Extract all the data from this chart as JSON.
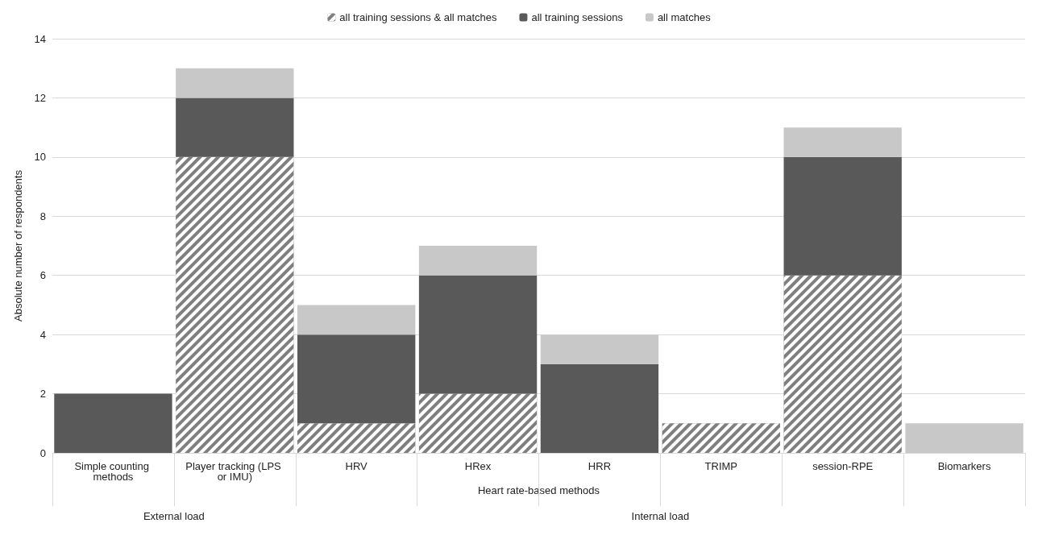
{
  "chart_data": {
    "type": "bar",
    "stacked": true,
    "ylabel": "Absolute number of respondents",
    "categories": [
      "Simple counting methods",
      "Player tracking (LPS or IMU)",
      "HRV",
      "HRex",
      "HRR",
      "TRIMP",
      "session-RPE",
      "Biomarkers"
    ],
    "series": [
      {
        "name": "all training sessions & all matches",
        "color": "#7f7f7f",
        "values": [
          0,
          10,
          1,
          2,
          0,
          1,
          6,
          0
        ]
      },
      {
        "name": "all training sessions",
        "color": "#595959",
        "values": [
          2,
          2,
          3,
          4,
          3,
          0,
          4,
          0
        ]
      },
      {
        "name": "all matches",
        "color": "#c8c8c8",
        "values": [
          0,
          1,
          1,
          1,
          1,
          0,
          1,
          1
        ]
      }
    ],
    "annotations": [
      "Heart rate-based methods",
      "External load",
      "Internal load"
    ],
    "ylim": [
      0,
      14
    ],
    "yticks": [
      0,
      2,
      4,
      6,
      8,
      10,
      12,
      14
    ],
    "grid": "y",
    "legend": "top"
  }
}
